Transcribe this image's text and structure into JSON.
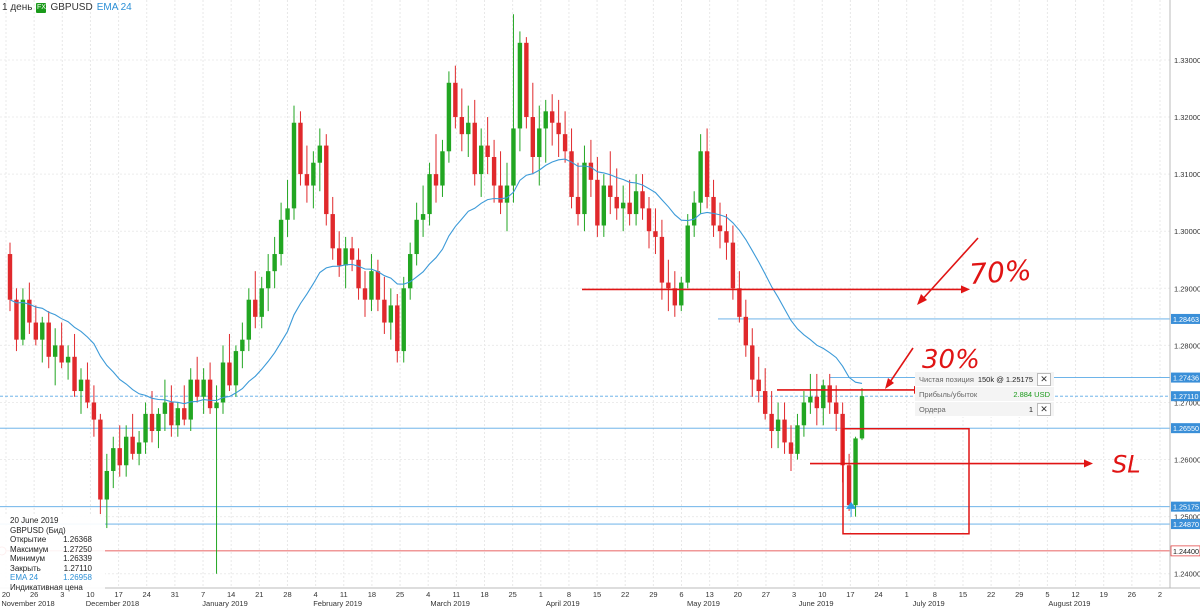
{
  "header": {
    "timeframe": "1 день",
    "symbol_badge": "FX",
    "symbol": "GBPUSD",
    "indicator": "EMA 24"
  },
  "info_box": {
    "date": "20 June 2019",
    "instrument": "GBPUSD (Бид)",
    "rows": [
      {
        "label": "Открытие",
        "value": "1.26368"
      },
      {
        "label": "Максимум",
        "value": "1.27250"
      },
      {
        "label": "Минимум",
        "value": "1.26339"
      },
      {
        "label": "Закрыть",
        "value": "1.27110"
      },
      {
        "label": "EMA 24",
        "value": "1.26958"
      }
    ],
    "footer": "Индикативная цена"
  },
  "position_panel": {
    "net_position_label": "Чистая позиция",
    "net_position_value": "150k @ 1.25175",
    "pnl_label": "Прибыль/убыток",
    "pnl_value": "2.884 USD",
    "orders_label": "Ордера",
    "orders_value": "1",
    "close_symbol": "✕"
  },
  "annotations": {
    "tp2": "70%",
    "tp1": "30%",
    "sl": "SL"
  },
  "colors": {
    "bull": "#22a622",
    "bear": "#e0292c",
    "ema": "#3c9ad8",
    "level_line": "#5aa9e6",
    "tag": "#3a8fd8",
    "annotation": "#e01414",
    "current_price_line": "#5aa9e6",
    "red_level": "#e03030"
  },
  "chart_data": {
    "type": "candlestick",
    "title": "",
    "y_ticks": [
      "1.33000",
      "1.32000",
      "1.31000",
      "1.30000",
      "1.29000",
      "1.28000",
      "1.27000",
      "1.26000",
      "1.25000",
      "1.24000"
    ],
    "ylim": [
      1.2375,
      1.3405
    ],
    "price_tags": [
      {
        "label": "1.28463",
        "value": 1.28463,
        "type": "level"
      },
      {
        "label": "1.27436",
        "value": 1.27436,
        "type": "level"
      },
      {
        "label": "1.27110",
        "value": 1.2711,
        "type": "current"
      },
      {
        "label": "1.26550",
        "value": 1.2655,
        "type": "level"
      },
      {
        "label": "1.25175",
        "value": 1.25175,
        "type": "level"
      },
      {
        "label": "1.24870",
        "value": 1.2487,
        "type": "level"
      },
      {
        "label": "1.24400",
        "value": 1.244,
        "type": "red"
      }
    ],
    "x_ticks_days": [
      "20",
      "26",
      "3",
      "10",
      "17",
      "24",
      "31",
      "7",
      "14",
      "21",
      "28",
      "4",
      "11",
      "18",
      "25",
      "4",
      "11",
      "18",
      "25",
      "1",
      "8",
      "15",
      "22",
      "29",
      "6",
      "13",
      "20",
      "27",
      "3",
      "10",
      "17",
      "24",
      "1",
      "8",
      "15",
      "22",
      "29",
      "5",
      "12",
      "19",
      "26",
      "2"
    ],
    "x_ticks_months": [
      "November 2018",
      "December 2018",
      "January 2019",
      "February 2019",
      "March 2019",
      "April 2019",
      "May 2019",
      "June 2019",
      "July 2019",
      "August 2019"
    ],
    "candles": [
      [
        1.296,
        1.298,
        1.286,
        1.288
      ],
      [
        1.288,
        1.29,
        1.279,
        1.281
      ],
      [
        1.281,
        1.29,
        1.28,
        1.288
      ],
      [
        1.288,
        1.291,
        1.282,
        1.284
      ],
      [
        1.284,
        1.287,
        1.28,
        1.281
      ],
      [
        1.281,
        1.285,
        1.277,
        1.284
      ],
      [
        1.284,
        1.286,
        1.276,
        1.278
      ],
      [
        1.278,
        1.283,
        1.273,
        1.28
      ],
      [
        1.28,
        1.284,
        1.276,
        1.277
      ],
      [
        1.277,
        1.28,
        1.274,
        1.278
      ],
      [
        1.278,
        1.282,
        1.271,
        1.272
      ],
      [
        1.272,
        1.276,
        1.268,
        1.274
      ],
      [
        1.274,
        1.277,
        1.269,
        1.27
      ],
      [
        1.27,
        1.273,
        1.264,
        1.267
      ],
      [
        1.267,
        1.268,
        1.25,
        1.253
      ],
      [
        1.253,
        1.261,
        1.248,
        1.258
      ],
      [
        1.258,
        1.264,
        1.255,
        1.262
      ],
      [
        1.262,
        1.266,
        1.257,
        1.259
      ],
      [
        1.259,
        1.266,
        1.257,
        1.264
      ],
      [
        1.264,
        1.268,
        1.26,
        1.261
      ],
      [
        1.261,
        1.265,
        1.259,
        1.263
      ],
      [
        1.263,
        1.27,
        1.261,
        1.268
      ],
      [
        1.268,
        1.272,
        1.263,
        1.265
      ],
      [
        1.265,
        1.269,
        1.262,
        1.268
      ],
      [
        1.268,
        1.274,
        1.265,
        1.27
      ],
      [
        1.27,
        1.273,
        1.264,
        1.266
      ],
      [
        1.266,
        1.27,
        1.264,
        1.269
      ],
      [
        1.269,
        1.273,
        1.266,
        1.267
      ],
      [
        1.267,
        1.276,
        1.265,
        1.274
      ],
      [
        1.274,
        1.278,
        1.27,
        1.271
      ],
      [
        1.271,
        1.276,
        1.268,
        1.274
      ],
      [
        1.274,
        1.277,
        1.268,
        1.269
      ],
      [
        1.269,
        1.273,
        1.24,
        1.27
      ],
      [
        1.27,
        1.28,
        1.268,
        1.277
      ],
      [
        1.277,
        1.282,
        1.272,
        1.273
      ],
      [
        1.273,
        1.28,
        1.271,
        1.279
      ],
      [
        1.279,
        1.284,
        1.276,
        1.281
      ],
      [
        1.281,
        1.29,
        1.279,
        1.288
      ],
      [
        1.288,
        1.293,
        1.283,
        1.285
      ],
      [
        1.285,
        1.292,
        1.283,
        1.29
      ],
      [
        1.29,
        1.296,
        1.286,
        1.293
      ],
      [
        1.293,
        1.299,
        1.29,
        1.296
      ],
      [
        1.296,
        1.305,
        1.294,
        1.302
      ],
      [
        1.302,
        1.309,
        1.299,
        1.304
      ],
      [
        1.304,
        1.322,
        1.302,
        1.319
      ],
      [
        1.319,
        1.321,
        1.308,
        1.31
      ],
      [
        1.31,
        1.315,
        1.305,
        1.308
      ],
      [
        1.308,
        1.314,
        1.304,
        1.312
      ],
      [
        1.312,
        1.318,
        1.307,
        1.315
      ],
      [
        1.315,
        1.317,
        1.301,
        1.303
      ],
      [
        1.303,
        1.306,
        1.295,
        1.297
      ],
      [
        1.297,
        1.3,
        1.292,
        1.294
      ],
      [
        1.294,
        1.299,
        1.29,
        1.297
      ],
      [
        1.297,
        1.299,
        1.293,
        1.295
      ],
      [
        1.295,
        1.297,
        1.288,
        1.29
      ],
      [
        1.29,
        1.293,
        1.285,
        1.288
      ],
      [
        1.288,
        1.296,
        1.286,
        1.293
      ],
      [
        1.293,
        1.295,
        1.286,
        1.288
      ],
      [
        1.288,
        1.292,
        1.282,
        1.284
      ],
      [
        1.284,
        1.29,
        1.281,
        1.287
      ],
      [
        1.287,
        1.289,
        1.277,
        1.279
      ],
      [
        1.279,
        1.292,
        1.277,
        1.29
      ],
      [
        1.29,
        1.298,
        1.288,
        1.296
      ],
      [
        1.296,
        1.305,
        1.294,
        1.302
      ],
      [
        1.302,
        1.308,
        1.299,
        1.303
      ],
      [
        1.303,
        1.312,
        1.301,
        1.31
      ],
      [
        1.31,
        1.317,
        1.305,
        1.308
      ],
      [
        1.308,
        1.316,
        1.306,
        1.314
      ],
      [
        1.314,
        1.328,
        1.312,
        1.326
      ],
      [
        1.326,
        1.329,
        1.318,
        1.32
      ],
      [
        1.32,
        1.325,
        1.314,
        1.317
      ],
      [
        1.317,
        1.322,
        1.313,
        1.319
      ],
      [
        1.319,
        1.323,
        1.308,
        1.31
      ],
      [
        1.31,
        1.318,
        1.306,
        1.315
      ],
      [
        1.315,
        1.32,
        1.31,
        1.313
      ],
      [
        1.313,
        1.316,
        1.305,
        1.308
      ],
      [
        1.308,
        1.314,
        1.303,
        1.305
      ],
      [
        1.305,
        1.312,
        1.3,
        1.308
      ],
      [
        1.308,
        1.338,
        1.305,
        1.318
      ],
      [
        1.318,
        1.335,
        1.314,
        1.333
      ],
      [
        1.333,
        1.334,
        1.318,
        1.32
      ],
      [
        1.32,
        1.326,
        1.31,
        1.313
      ],
      [
        1.313,
        1.322,
        1.308,
        1.318
      ],
      [
        1.318,
        1.323,
        1.312,
        1.321
      ],
      [
        1.321,
        1.324,
        1.315,
        1.319
      ],
      [
        1.319,
        1.323,
        1.313,
        1.317
      ],
      [
        1.317,
        1.321,
        1.312,
        1.314
      ],
      [
        1.314,
        1.318,
        1.304,
        1.306
      ],
      [
        1.306,
        1.312,
        1.301,
        1.303
      ],
      [
        1.303,
        1.315,
        1.3,
        1.312
      ],
      [
        1.312,
        1.316,
        1.306,
        1.309
      ],
      [
        1.309,
        1.313,
        1.299,
        1.301
      ],
      [
        1.301,
        1.31,
        1.299,
        1.308
      ],
      [
        1.308,
        1.314,
        1.303,
        1.306
      ],
      [
        1.306,
        1.311,
        1.302,
        1.304
      ],
      [
        1.304,
        1.308,
        1.3,
        1.305
      ],
      [
        1.305,
        1.309,
        1.301,
        1.303
      ],
      [
        1.303,
        1.31,
        1.301,
        1.307
      ],
      [
        1.307,
        1.31,
        1.302,
        1.304
      ],
      [
        1.304,
        1.306,
        1.297,
        1.3
      ],
      [
        1.3,
        1.304,
        1.296,
        1.299
      ],
      [
        1.299,
        1.302,
        1.288,
        1.291
      ],
      [
        1.291,
        1.295,
        1.286,
        1.29
      ],
      [
        1.29,
        1.293,
        1.285,
        1.287
      ],
      [
        1.287,
        1.292,
        1.286,
        1.291
      ],
      [
        1.291,
        1.303,
        1.29,
        1.301
      ],
      [
        1.301,
        1.307,
        1.299,
        1.305
      ],
      [
        1.305,
        1.317,
        1.303,
        1.314
      ],
      [
        1.314,
        1.318,
        1.304,
        1.306
      ],
      [
        1.306,
        1.309,
        1.299,
        1.301
      ],
      [
        1.301,
        1.305,
        1.297,
        1.3
      ],
      [
        1.3,
        1.303,
        1.295,
        1.298
      ],
      [
        1.298,
        1.301,
        1.288,
        1.29
      ],
      [
        1.29,
        1.293,
        1.284,
        1.285
      ],
      [
        1.285,
        1.288,
        1.278,
        1.28
      ],
      [
        1.28,
        1.283,
        1.271,
        1.274
      ],
      [
        1.274,
        1.278,
        1.27,
        1.272
      ],
      [
        1.272,
        1.276,
        1.267,
        1.268
      ],
      [
        1.268,
        1.272,
        1.262,
        1.265
      ],
      [
        1.265,
        1.27,
        1.262,
        1.267
      ],
      [
        1.267,
        1.27,
        1.261,
        1.263
      ],
      [
        1.263,
        1.266,
        1.258,
        1.261
      ],
      [
        1.261,
        1.268,
        1.26,
        1.266
      ],
      [
        1.266,
        1.272,
        1.264,
        1.27
      ],
      [
        1.27,
        1.275,
        1.268,
        1.271
      ],
      [
        1.271,
        1.275,
        1.266,
        1.269
      ],
      [
        1.269,
        1.274,
        1.266,
        1.273
      ],
      [
        1.273,
        1.275,
        1.268,
        1.27
      ],
      [
        1.27,
        1.273,
        1.265,
        1.268
      ],
      [
        1.268,
        1.27,
        1.256,
        1.259
      ],
      [
        1.259,
        1.261,
        1.251,
        1.252
      ],
      [
        1.252,
        1.264,
        1.25,
        1.2637
      ],
      [
        1.2637,
        1.2725,
        1.2634,
        1.2711
      ]
    ]
  }
}
